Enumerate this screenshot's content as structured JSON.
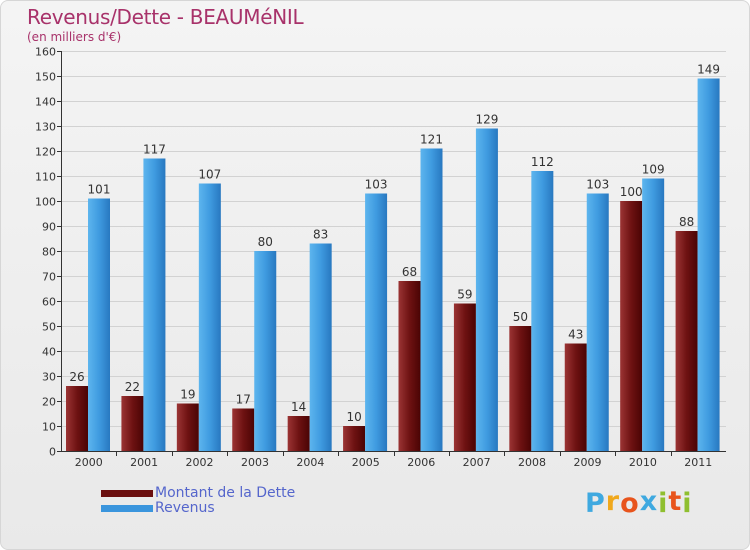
{
  "header": {
    "title": "Revenus/Dette - BEAUMéNIL",
    "subtitle": "(en milliers d'€)"
  },
  "brand": {
    "letters": [
      "P",
      "r",
      "o",
      "x",
      "i",
      "t",
      "i"
    ],
    "colors": [
      "#3fa9e0",
      "#f0a81c",
      "#e8541c",
      "#3fa9e0",
      "#8fbf2f",
      "#e8541c",
      "#8fbf2f"
    ]
  },
  "chart_data": {
    "type": "bar",
    "title": "Revenus/Dette - BEAUMéNIL",
    "subtitle": "(en milliers d'€)",
    "categories": [
      "2000",
      "2001",
      "2002",
      "2003",
      "2004",
      "2005",
      "2006",
      "2007",
      "2008",
      "2009",
      "2010",
      "2011"
    ],
    "series": [
      {
        "name": "Montant de la Dette",
        "color": "#6b0f0f",
        "values": [
          26,
          22,
          19,
          17,
          14,
          10,
          68,
          59,
          50,
          43,
          100,
          88
        ]
      },
      {
        "name": "Revenus",
        "color": "#3a95dd",
        "values": [
          101,
          117,
          107,
          80,
          83,
          103,
          121,
          129,
          112,
          103,
          109,
          149
        ]
      }
    ],
    "ylim": [
      0,
      160
    ],
    "yticks": [
      0,
      10,
      20,
      30,
      40,
      50,
      60,
      70,
      80,
      90,
      100,
      110,
      120,
      130,
      140,
      150,
      160
    ],
    "grid": true,
    "legend_position": "bottom-left"
  }
}
